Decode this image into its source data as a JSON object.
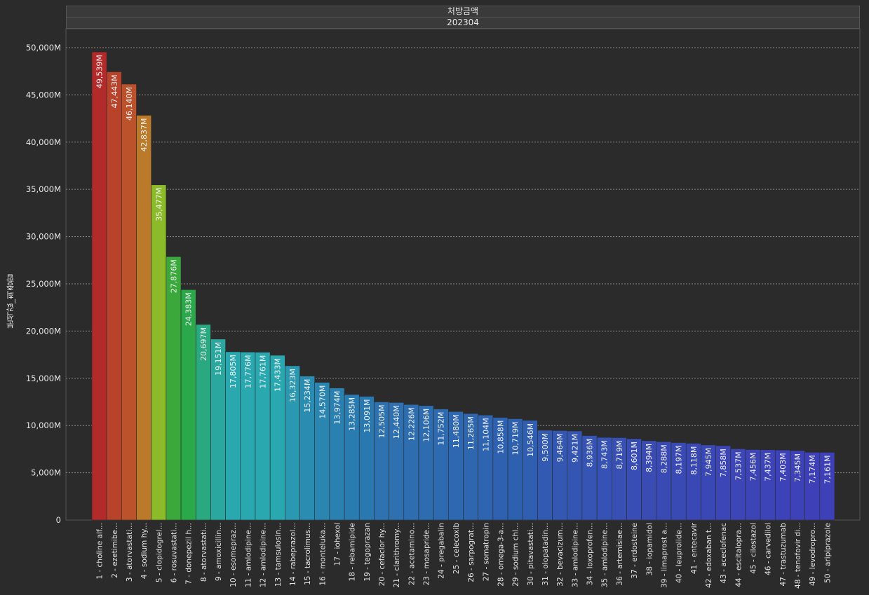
{
  "header": {
    "measure_title": "처방금액",
    "period": "202304"
  },
  "colors": {
    "background": "#2b2b2b",
    "grid": "#8a8a8a",
    "text": "#e6e6e6"
  },
  "chart_data": {
    "type": "bar",
    "ylabel": "분석값_최종합",
    "ylim": [
      0,
      52000
    ],
    "yticks": [
      0,
      5000,
      10000,
      15000,
      20000,
      25000,
      30000,
      35000,
      40000,
      45000,
      50000
    ],
    "ytick_labels": [
      "0",
      "5,000M",
      "10,000M",
      "15,000M",
      "20,000M",
      "25,000M",
      "30,000M",
      "35,000M",
      "40,000M",
      "45,000M",
      "50,000M"
    ],
    "grid": true,
    "categories": [
      "1 - choline alf...",
      "2 - ezetimibe...",
      "3 - atorvastati...",
      "4 - sodium hy...",
      "5 - clopidogrel...",
      "6 - rosuvastati...",
      "7 - donepezil h...",
      "8 - atorvastati...",
      "9 - amoxicillin...",
      "10 - esomepraz...",
      "11 - amlodipine...",
      "12 - amlodipine...",
      "13 - tamsulosin...",
      "14 - rabeprazol...",
      "15 - tacrolimus...",
      "16 - monteluka...",
      "17 - iohexol",
      "18 - rebamipide",
      "19 - tegoprazan",
      "20 - cefaclor hy...",
      "21 - clarithromy...",
      "22 - acetamino...",
      "23 - mosapride...",
      "24 - pregabalin",
      "25 - celecoxib",
      "26 - sarpograt...",
      "27 - somatropin",
      "28 - omega-3-a...",
      "29 - sodium chl...",
      "30 - pitavastati...",
      "31 - olopatadin...",
      "32 - bevacizum...",
      "33 - amlodipine...",
      "34 - loxoprofen...",
      "35 - amlodipine...",
      "36 - artemisiae...",
      "37 - erdosteine",
      "38 - iopamidol",
      "39 - limaprost a...",
      "40 - leuprolide...",
      "41 - entecavir",
      "42 - edoxaban t...",
      "43 - aceclofenac",
      "44 - escitalopra...",
      "45 - cilostazol",
      "46 - carvedilol",
      "47 - trastuzumab",
      "48 - tenofovir di...",
      "49 - levodropro...",
      "50 - aripiprazole"
    ],
    "values": [
      49539,
      47443,
      46140,
      42837,
      35477,
      27876,
      24383,
      20697,
      19151,
      17805,
      17776,
      17761,
      17433,
      16323,
      15234,
      14570,
      13974,
      13285,
      13091,
      12505,
      12440,
      12226,
      12106,
      11752,
      11480,
      11265,
      11104,
      10858,
      10719,
      10546,
      9500,
      9464,
      9421,
      8936,
      8743,
      8719,
      8601,
      8394,
      8288,
      8197,
      8118,
      7945,
      7858,
      7537,
      7456,
      7437,
      7403,
      7345,
      7174,
      7161
    ],
    "data_labels": [
      "49,539M",
      "47,443M",
      "46,140M",
      "42,837M",
      "35,477M",
      "27,876M",
      "24,383M",
      "20,697M",
      "19,151M",
      "17,805M",
      "17,776M",
      "17,761M",
      "17,433M",
      "16,323M",
      "15,234M",
      "14,570M",
      "13,974M",
      "13,285M",
      "13,091M",
      "12,505M",
      "12,440M",
      "12,226M",
      "12,106M",
      "11,752M",
      "11,480M",
      "11,265M",
      "11,104M",
      "10,858M",
      "10,719M",
      "10,546M",
      "9,500M",
      "9,464M",
      "9,421M",
      "8,936M",
      "8,743M",
      "8,719M",
      "8,601M",
      "8,394M",
      "8,288M",
      "8,197M",
      "8,118M",
      "7,945M",
      "7,858M",
      "7,537M",
      "7,456M",
      "7,437M",
      "7,403M",
      "7,345M",
      "7,174M",
      "7,161M"
    ],
    "bar_colors": [
      "#b22a2a",
      "#b8422a",
      "#bb522c",
      "#bb7a2a",
      "#8cbb2a",
      "#3aa83a",
      "#2aa84a",
      "#2aa880",
      "#2aa8a0",
      "#2aa8b0",
      "#2aa8b0",
      "#2aa8b0",
      "#2aa8b0",
      "#2a98b0",
      "#2a8cb0",
      "#2a86b0",
      "#2a80b0",
      "#2a7cb0",
      "#2a78b0",
      "#2e72b0",
      "#2e70b0",
      "#2e6eb0",
      "#2e6cb0",
      "#2e6ab0",
      "#2e68b0",
      "#2e66b0",
      "#2e64b0",
      "#2e62b0",
      "#2e60b0",
      "#305eb0",
      "#325ab2",
      "#3458b2",
      "#3456b2",
      "#3654b4",
      "#3652b4",
      "#3850b4",
      "#384eb4",
      "#3a4cb4",
      "#3a4ab4",
      "#3a4ab4",
      "#3a48b6",
      "#3a48b6",
      "#3c46b6",
      "#3c46b6",
      "#3c44b6",
      "#3c44b8",
      "#3e42b8",
      "#3e42b8",
      "#3e40b8",
      "#3e40b8"
    ]
  }
}
